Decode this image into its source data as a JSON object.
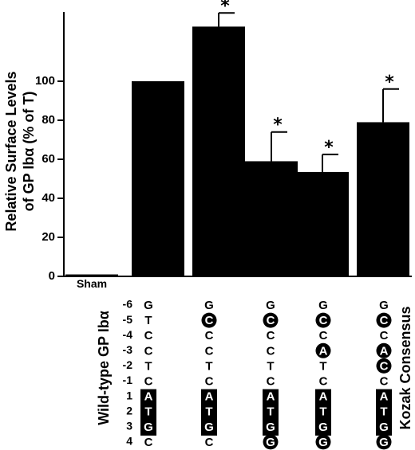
{
  "chart_data": {
    "type": "bar",
    "ylabel_line1": "Relative Surface Levels",
    "ylabel_line2": "of GP Ibα (% of T)",
    "ylim": [
      0,
      130
    ],
    "yticks": [
      0,
      20,
      40,
      60,
      80,
      100
    ],
    "grid": false,
    "sham_label": "Sham",
    "bars": [
      {
        "value": 1,
        "error": 0,
        "significant": false
      },
      {
        "value": 100,
        "error": 0,
        "significant": false
      },
      {
        "value": 128,
        "error": 7,
        "significant": true
      },
      {
        "value": 59,
        "error": 15,
        "significant": true
      },
      {
        "value": 53.5,
        "error": 9,
        "significant": true
      },
      {
        "value": 79,
        "error": 17,
        "significant": true
      }
    ],
    "star_text": "*",
    "left_label": "Wild-type GP Ibα",
    "right_label": "Kozak Consensus",
    "positions": [
      "-6",
      "-5",
      "-4",
      "-3",
      "-2",
      "-1",
      "1",
      "2",
      "3",
      "4"
    ],
    "sequences": [
      {
        "nts": [
          "G",
          "T",
          "C",
          "C",
          "T",
          "C",
          "A",
          "T",
          "G",
          "C"
        ],
        "circled": [],
        "start_codon": true
      },
      {
        "nts": [
          "G",
          "C",
          "C",
          "C",
          "T",
          "C",
          "A",
          "T",
          "G",
          "C"
        ],
        "circled": [
          1
        ],
        "start_codon": true
      },
      {
        "nts": [
          "G",
          "C",
          "C",
          "C",
          "T",
          "C",
          "A",
          "T",
          "G",
          "G"
        ],
        "circled": [
          1,
          9
        ],
        "start_codon": true
      },
      {
        "nts": [
          "G",
          "C",
          "C",
          "A",
          "T",
          "C",
          "A",
          "T",
          "G",
          "G"
        ],
        "circled": [
          1,
          3,
          9
        ],
        "start_codon": true
      },
      {
        "nts": [
          "G",
          "C",
          "C",
          "A",
          "C",
          "C",
          "A",
          "T",
          "G",
          "G"
        ],
        "circled": [
          1,
          3,
          4,
          9
        ],
        "start_codon": true
      }
    ]
  }
}
